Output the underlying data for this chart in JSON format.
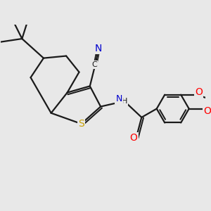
{
  "bg_color": "#e8e8e8",
  "bond_color": "#1a1a1a",
  "bond_width": 1.6,
  "atom_colors": {
    "S": "#c8a000",
    "N": "#0000cd",
    "O": "#ff0000",
    "C": "#1a1a1a",
    "H": "#1a1a1a"
  },
  "font_size": 9,
  "figsize": [
    3.0,
    3.0
  ],
  "dpi": 100,
  "xlim": [
    -1.0,
    8.5
  ],
  "ylim": [
    1.5,
    9.0
  ]
}
